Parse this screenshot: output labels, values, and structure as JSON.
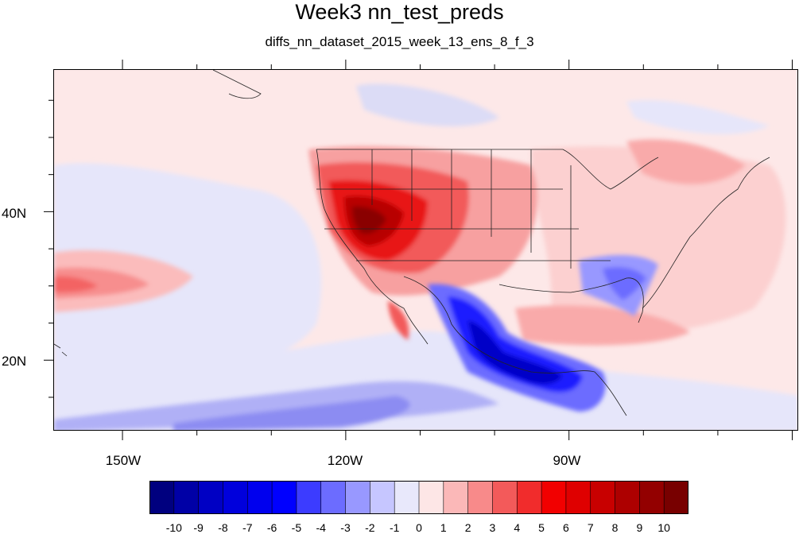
{
  "title": "Week3 nn_test_preds",
  "subtitle": "diffs_nn_dataset_2015_week_13_ens_8_f_3",
  "map": {
    "projection": "cylindrical-equidistant",
    "lon_range": [
      -159.3,
      -59.2
    ],
    "lat_range": [
      10.5,
      59.2
    ],
    "x_tick_labels": [
      {
        "lon": -150,
        "label": "150W"
      },
      {
        "lon": -120,
        "label": "120W"
      },
      {
        "lon": -90,
        "label": "90W"
      }
    ],
    "y_tick_labels": [
      {
        "lat": 40,
        "label": "40N"
      },
      {
        "lat": 20,
        "label": "20N"
      }
    ],
    "field": "difference (nn_test_preds)",
    "features": [
      "strong positive anomaly over US Southwest / Great Basin",
      "strong negative anomaly over Mexico and Central America",
      "weak negative anomaly over US Southeast / Florida",
      "positive anomaly over eastern North Pacific near 30N",
      "negative anomaly along southern boundary over tropical Pacific"
    ]
  },
  "colorbar": {
    "labels": [
      "-10",
      "-9",
      "-8",
      "-7",
      "-6",
      "-5",
      "-4",
      "-3",
      "-2",
      "-1",
      "0",
      "1",
      "2",
      "3",
      "4",
      "5",
      "6",
      "7",
      "8",
      "9",
      "10"
    ],
    "colors": [
      "#00007f",
      "#0000a6",
      "#0000c4",
      "#0000dc",
      "#0000ee",
      "#0000ff",
      "#3c3cff",
      "#6c6cff",
      "#9898ff",
      "#c6c6ff",
      "#e8e8fb",
      "#fde6e6",
      "#fbb8b8",
      "#f88a8a",
      "#f35a5a",
      "#f12c2c",
      "#f20000",
      "#df0000",
      "#c80000",
      "#ad0000",
      "#930000",
      "#780000"
    ]
  }
}
